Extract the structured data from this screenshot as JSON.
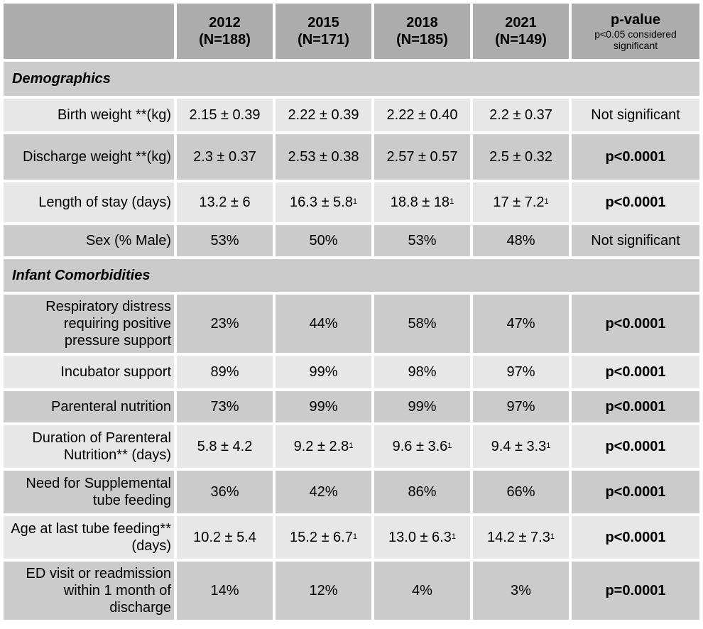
{
  "header": {
    "blank": "",
    "years": [
      {
        "year": "2012",
        "n": "(N=188)"
      },
      {
        "year": "2015",
        "n": "(N=171)"
      },
      {
        "year": "2018",
        "n": "(N=185)"
      },
      {
        "year": "2021",
        "n": "(N=149)"
      }
    ],
    "pvalue_title": "p-value",
    "pvalue_sub": "p<0.05 considered significant"
  },
  "sections": {
    "demographics": "Demographics",
    "comorbidities": "Infant Comorbidities"
  },
  "rows": {
    "birth_weight": {
      "label": "Birth weight **(kg)",
      "v": [
        "2.15 ± 0.39",
        "2.22 ± 0.39",
        "2.22 ± 0.40",
        "2.2 ± 0.37"
      ],
      "p": "Not significant"
    },
    "discharge_weight": {
      "label": "Discharge weight **(kg)",
      "v": [
        "2.3 ± 0.37",
        "2.53 ± 0.38",
        "2.57 ± 0.57",
        "2.5 ± 0.32"
      ],
      "p": "p<0.0001"
    },
    "length_of_stay": {
      "label": "Length of stay (days)",
      "v": [
        "13.2 ± 6",
        "16.3 ± 5.8",
        "18.8 ± 18",
        "17 ± 7.2"
      ],
      "sup": [
        "",
        "1",
        "1",
        "1"
      ],
      "p": "p<0.0001"
    },
    "sex": {
      "label": "Sex (% Male)",
      "v": [
        "53%",
        "50%",
        "53%",
        "48%"
      ],
      "p": "Not significant"
    },
    "respiratory": {
      "label": "Respiratory distress requiring positive pressure support",
      "v": [
        "23%",
        "44%",
        "58%",
        "47%"
      ],
      "p": "p<0.0001"
    },
    "incubator": {
      "label": "Incubator support",
      "v": [
        "89%",
        "99%",
        "98%",
        "97%"
      ],
      "p": "p<0.0001"
    },
    "parenteral": {
      "label": "Parenteral nutrition",
      "v": [
        "73%",
        "99%",
        "99%",
        "97%"
      ],
      "p": "p<0.0001"
    },
    "duration_pn": {
      "label": "Duration of Parenteral Nutrition** (days)",
      "v": [
        "5.8 ± 4.2",
        "9.2 ± 2.8",
        "9.6 ± 3.6",
        "9.4 ± 3.3"
      ],
      "sup": [
        "",
        "1",
        "1",
        "1"
      ],
      "p": "p<0.0001"
    },
    "tube_feeding": {
      "label": "Need for Supplemental tube feeding",
      "v": [
        "36%",
        "42%",
        "86%",
        "66%"
      ],
      "p": "p<0.0001"
    },
    "age_last_tube": {
      "label": "Age at last tube feeding** (days)",
      "v": [
        "10.2 ± 5.4",
        "15.2 ± 6.7",
        "13.0 ± 6.3",
        "14.2 ± 7.3"
      ],
      "sup": [
        "",
        "1",
        "1",
        "1"
      ],
      "p": "p<0.0001"
    },
    "ed_visit": {
      "label": "ED visit or readmission within 1 month of discharge",
      "v": [
        "14%",
        "12%",
        "4%",
        "3%"
      ],
      "p": "p=0.0001"
    }
  }
}
